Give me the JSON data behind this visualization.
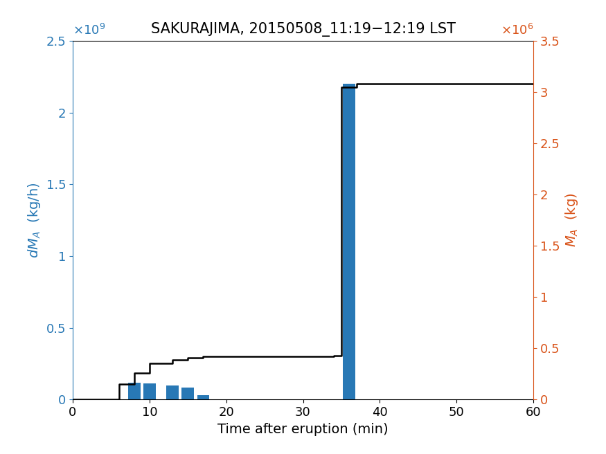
{
  "title": "SAKURAJIMA, 20150508_11:19−12:19 LST",
  "xlabel": "Time after eruption (min)",
  "bar_centers": [
    8,
    10,
    13,
    15,
    17,
    36
  ],
  "bar_heights": [
    115000000.0,
    110000000.0,
    100000000.0,
    85000000.0,
    32000000.0,
    2200000000.0
  ],
  "bar_width": 1.6,
  "bar_color": "#2878b5",
  "line_x": [
    0,
    6,
    6,
    8,
    8,
    10,
    10,
    13,
    13,
    15,
    15,
    17,
    17,
    34,
    34,
    35,
    35,
    37,
    37,
    60
  ],
  "line_y_right": [
    0,
    0,
    150000.0,
    150000.0,
    260000.0,
    260000.0,
    350000.0,
    350000.0,
    385000.0,
    385000.0,
    410000.0,
    410000.0,
    420000.0,
    420000.0,
    425000.0,
    425000.0,
    3050000.0,
    3050000.0,
    3080000.0,
    3080000.0
  ],
  "line_color": "#000000",
  "line_width": 1.8,
  "xlim": [
    0,
    60
  ],
  "ylim_left": [
    0,
    2500000000.0
  ],
  "ylim_right": [
    0,
    3500000.0
  ],
  "xticks": [
    0,
    10,
    20,
    30,
    40,
    50,
    60
  ],
  "yticks_left": [
    0,
    500000000.0,
    1000000000.0,
    1500000000.0,
    2000000000.0,
    2500000000.0
  ],
  "yticks_left_labels": [
    "0",
    "0.5",
    "1",
    "1.5",
    "2",
    "2.5"
  ],
  "yticks_right": [
    0,
    500000.0,
    1000000.0,
    1500000.0,
    2000000.0,
    2500000.0,
    3000000.0,
    3500000.0
  ],
  "yticks_right_labels": [
    "0",
    "0.5",
    "1",
    "1.5",
    "2",
    "2.5",
    "3",
    "3.5"
  ],
  "left_color": "#2878b5",
  "right_color": "#d95319",
  "title_fontsize": 15,
  "label_fontsize": 14,
  "tick_fontsize": 13,
  "figsize": [
    8.75,
    6.56
  ],
  "dpi": 100
}
